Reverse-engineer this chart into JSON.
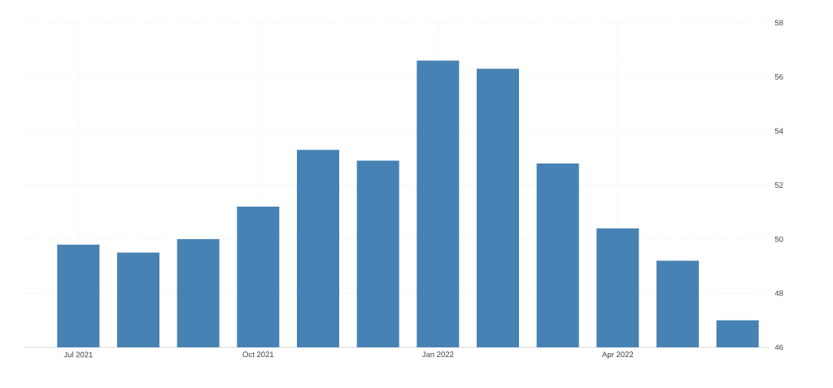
{
  "chart_data": {
    "type": "bar",
    "categories": [
      "Jul 2021",
      null,
      null,
      "Oct 2021",
      null,
      null,
      "Jan 2022",
      null,
      null,
      "Apr 2022",
      null,
      null
    ],
    "values": [
      49.8,
      49.5,
      50.0,
      51.2,
      53.3,
      52.9,
      56.6,
      56.3,
      52.8,
      50.4,
      49.2,
      47.0
    ],
    "color": "#4682b4",
    "ylim": [
      46,
      58
    ],
    "yticks": [
      46,
      48,
      50,
      52,
      54,
      56,
      58
    ],
    "grid": true
  }
}
